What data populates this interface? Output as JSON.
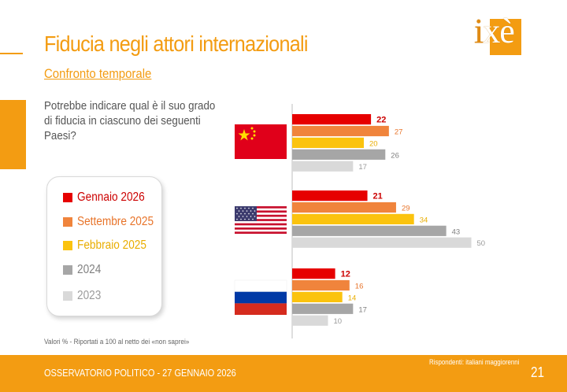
{
  "header": {
    "title": "Fiducia negli attori internazionali",
    "subtitle": "Confronto temporale",
    "logo_text": "ixè"
  },
  "question": "Potrebbe indicare qual è il suo grado di fiducia in ciascuno dei seguenti Paesi?",
  "note": "Valori % - Riportati a 100 al netto dei «non saprei»",
  "footer": {
    "left": "OSSERVATORIO POLITICO - 27 GENNAIO 2026",
    "right": "Rispondenti: italiani maggiorenni",
    "page": "21"
  },
  "colors": {
    "accent": "#f39c12",
    "footer_bg": "#f39c12"
  },
  "chart_data": {
    "type": "bar",
    "orientation": "horizontal",
    "categories": [
      "Cina",
      "Stati Uniti",
      "Russia"
    ],
    "category_icons": [
      "china-flag-icon",
      "usa-flag-icon",
      "russia-flag-icon"
    ],
    "series": [
      {
        "name": "Gennaio 2026",
        "color": "#e60000",
        "label_color": "#cc0000",
        "values": [
          22,
          21,
          12
        ]
      },
      {
        "name": "Settembre 2025",
        "color": "#f0843c",
        "label_color": "#e8742a",
        "values": [
          27,
          29,
          16
        ]
      },
      {
        "name": "Febbraio 2025",
        "color": "#fbc30e",
        "label_color": "#e9ad00",
        "values": [
          20,
          34,
          14
        ]
      },
      {
        "name": "2024",
        "color": "#a6a6a6",
        "label_color": "#808080",
        "values": [
          26,
          43,
          17
        ]
      },
      {
        "name": "2023",
        "color": "#d9d9d9",
        "label_color": "#9a9a9a",
        "values": [
          17,
          50,
          10
        ]
      }
    ],
    "xlim": [
      0,
      50
    ],
    "legend": "left",
    "grid": false
  }
}
